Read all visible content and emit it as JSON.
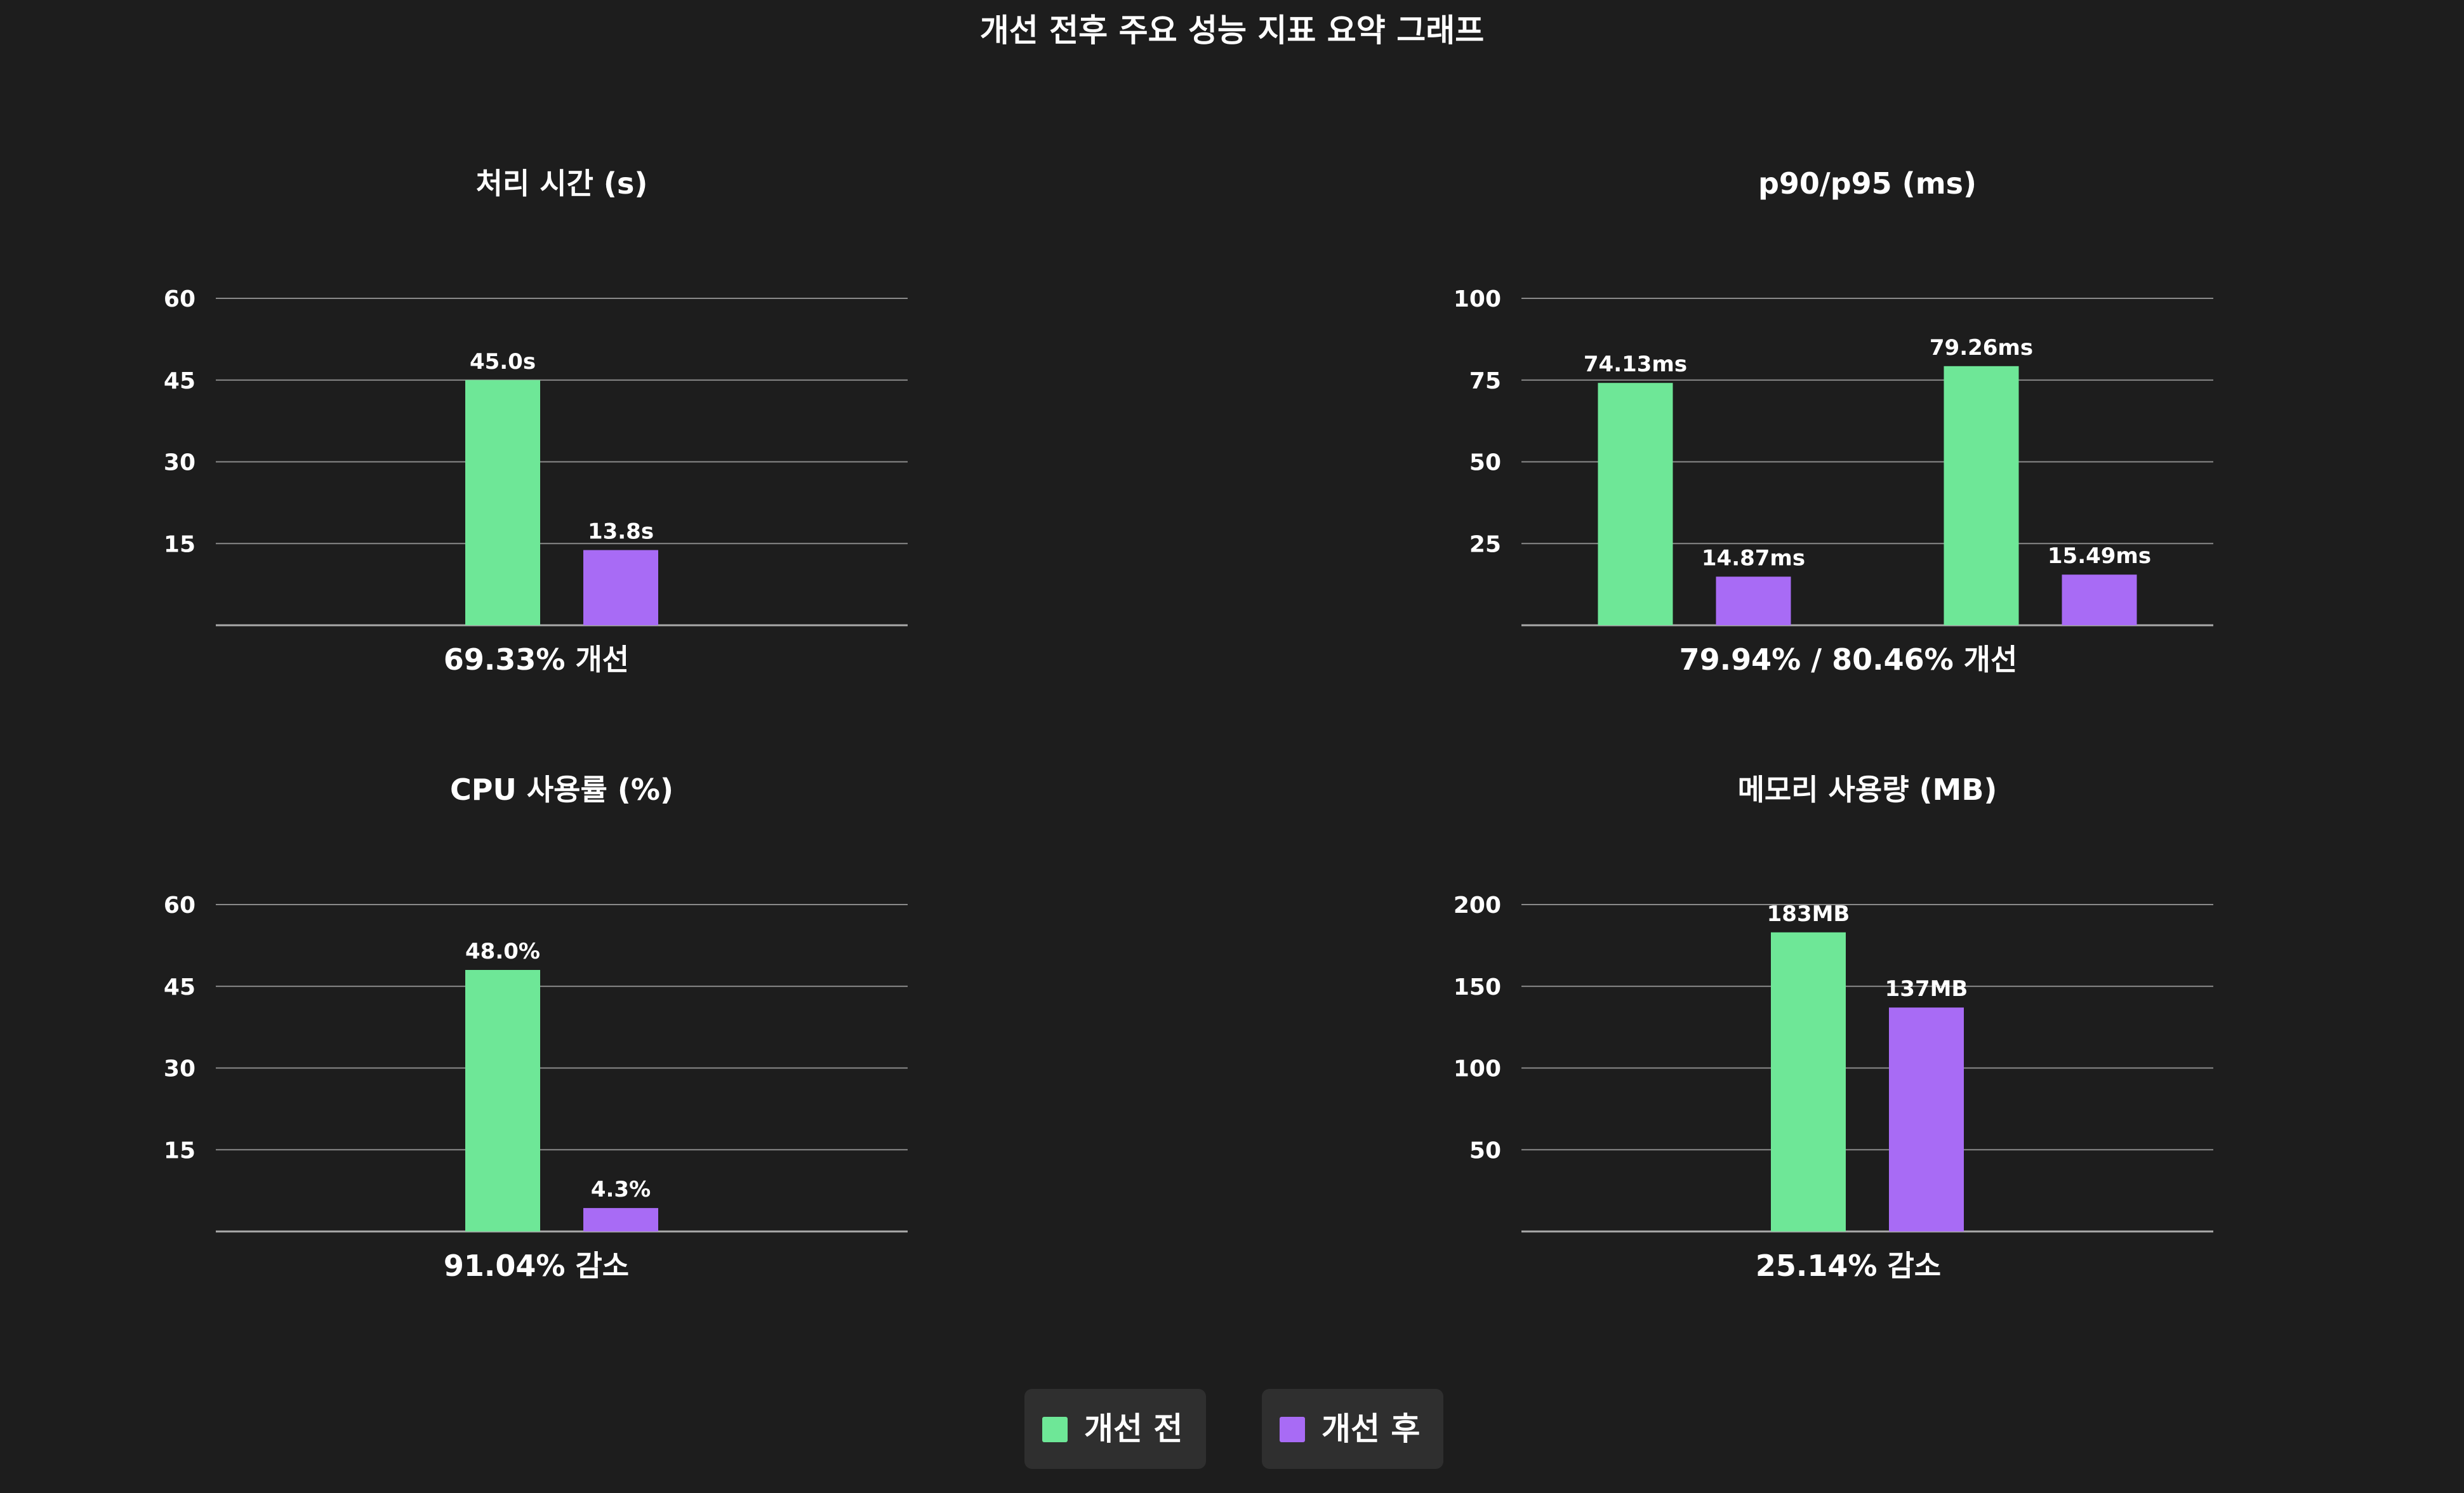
{
  "title": "개선 전후 주요 성능 지표 요약 그래프",
  "colors": {
    "before": "#6ee797",
    "after": "#a86bf5",
    "background": "#1d1d1d",
    "grid": "#8a8a8a",
    "text": "#ffffff"
  },
  "legend": {
    "before_label": "개선 전",
    "after_label": "개선 후",
    "placement": "bottom-center"
  },
  "chart_data": [
    {
      "id": "time",
      "type": "bar",
      "title": "처리 시간 (s)",
      "categories": [
        "",
        "",
        ""
      ],
      "series": [
        {
          "name": "개선 전",
          "values": [
            null,
            45.0,
            null
          ],
          "labels": [
            "",
            "45.0s",
            ""
          ]
        },
        {
          "name": "개선 후",
          "values": [
            null,
            13.8,
            null
          ],
          "labels": [
            "",
            "13.8s",
            ""
          ]
        }
      ],
      "ylim": [
        0,
        60
      ],
      "yticks": [
        15,
        30,
        45,
        60
      ],
      "grid": true,
      "caption": "69.33% 개선"
    },
    {
      "id": "latency",
      "type": "bar",
      "title": "p90/p95 (ms)",
      "categories": [
        "",
        ""
      ],
      "series": [
        {
          "name": "개선 전",
          "values": [
            74.13,
            79.26
          ],
          "labels": [
            "74.13ms",
            "79.26ms"
          ]
        },
        {
          "name": "개선 후",
          "values": [
            14.87,
            15.49
          ],
          "labels": [
            "14.87ms",
            "15.49ms"
          ]
        }
      ],
      "ylim": [
        0,
        100
      ],
      "yticks": [
        25,
        50,
        75,
        100
      ],
      "grid": true,
      "caption": "79.94% / 80.46% 개선"
    },
    {
      "id": "cpu",
      "type": "bar",
      "title": "CPU 사용률  (%)",
      "categories": [
        "",
        "",
        ""
      ],
      "series": [
        {
          "name": "개선 전",
          "values": [
            null,
            48.0,
            null
          ],
          "labels": [
            "",
            "48.0%",
            ""
          ]
        },
        {
          "name": "개선 후",
          "values": [
            null,
            4.3,
            null
          ],
          "labels": [
            "",
            "4.3%",
            ""
          ]
        }
      ],
      "ylim": [
        0,
        60
      ],
      "yticks": [
        15,
        30,
        45,
        60
      ],
      "grid": true,
      "caption": "91.04% 감소"
    },
    {
      "id": "memory",
      "type": "bar",
      "title": "메모리 사용량 (MB)",
      "categories": [
        ""
      ],
      "series": [
        {
          "name": "개선 전",
          "values": [
            183
          ],
          "labels": [
            "183MB"
          ]
        },
        {
          "name": "개선 후",
          "values": [
            137
          ],
          "labels": [
            "137MB"
          ]
        }
      ],
      "ylim": [
        0,
        200
      ],
      "yticks": [
        50,
        100,
        150,
        200
      ],
      "grid": true,
      "caption": "25.14% 감소"
    }
  ]
}
